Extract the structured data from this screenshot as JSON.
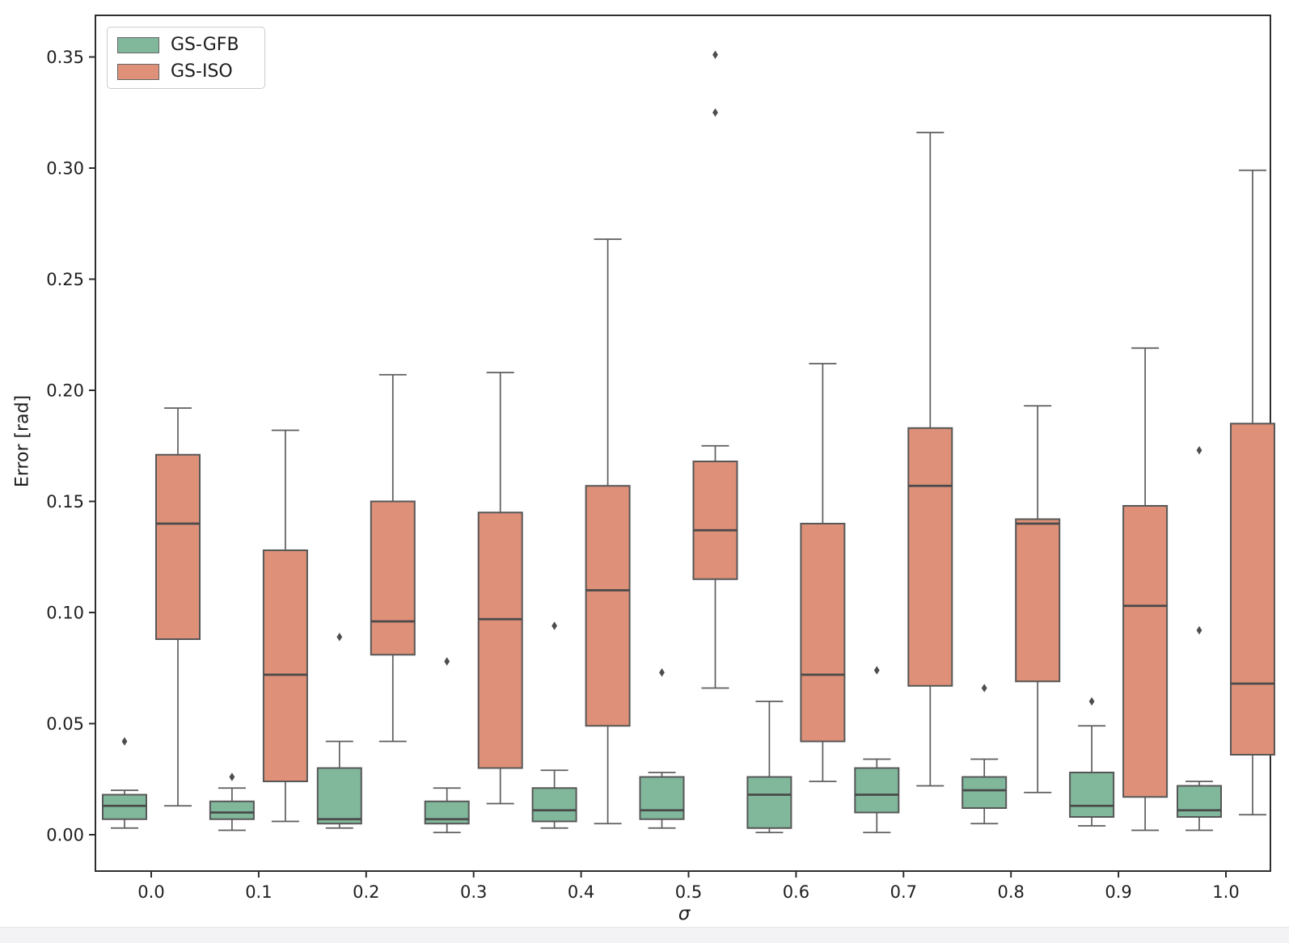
{
  "figure": {
    "background": "#ffffff",
    "footer_strip_color": "#f3f3f5"
  },
  "chart_data": {
    "type": "boxplot",
    "title": "",
    "xlabel": "σ",
    "ylabel": "Error [rad]",
    "grid": false,
    "legend_position": "upper left",
    "categories": [
      "0.0",
      "0.1",
      "0.2",
      "0.3",
      "0.4",
      "0.5",
      "0.6",
      "0.7",
      "0.8",
      "0.9",
      "1.0"
    ],
    "yticks": [
      0.0,
      0.05,
      0.1,
      0.15,
      0.2,
      0.25,
      0.3,
      0.35
    ],
    "ytick_labels": [
      "0.00",
      "0.05",
      "0.10",
      "0.15",
      "0.20",
      "0.25",
      "0.30",
      "0.35"
    ],
    "ylim": [
      -0.0164,
      0.3687
    ],
    "axis_color": "#2e2e2e",
    "whisker_color": "#5d5d5d",
    "outlier_color": "#4d4d4d",
    "series": [
      {
        "name": "GS-GFB",
        "color": "#81b89c",
        "boxes": [
          {
            "whislo": 0.003,
            "q1": 0.007,
            "med": 0.013,
            "q3": 0.018,
            "whishi": 0.02,
            "fliers": [
              0.042
            ]
          },
          {
            "whislo": 0.002,
            "q1": 0.007,
            "med": 0.01,
            "q3": 0.015,
            "whishi": 0.021,
            "fliers": [
              0.026
            ]
          },
          {
            "whislo": 0.003,
            "q1": 0.005,
            "med": 0.007,
            "q3": 0.03,
            "whishi": 0.042,
            "fliers": [
              0.089
            ]
          },
          {
            "whislo": 0.001,
            "q1": 0.005,
            "med": 0.007,
            "q3": 0.015,
            "whishi": 0.021,
            "fliers": [
              0.078
            ]
          },
          {
            "whislo": 0.003,
            "q1": 0.006,
            "med": 0.011,
            "q3": 0.021,
            "whishi": 0.029,
            "fliers": [
              0.094
            ]
          },
          {
            "whislo": 0.003,
            "q1": 0.007,
            "med": 0.011,
            "q3": 0.026,
            "whishi": 0.028,
            "fliers": [
              0.073
            ]
          },
          {
            "whislo": 0.001,
            "q1": 0.003,
            "med": 0.018,
            "q3": 0.026,
            "whishi": 0.06,
            "fliers": []
          },
          {
            "whislo": 0.001,
            "q1": 0.01,
            "med": 0.018,
            "q3": 0.03,
            "whishi": 0.034,
            "fliers": [
              0.074
            ]
          },
          {
            "whislo": 0.005,
            "q1": 0.012,
            "med": 0.02,
            "q3": 0.026,
            "whishi": 0.034,
            "fliers": [
              0.066
            ]
          },
          {
            "whislo": 0.004,
            "q1": 0.008,
            "med": 0.013,
            "q3": 0.028,
            "whishi": 0.049,
            "fliers": [
              0.06
            ]
          },
          {
            "whislo": 0.002,
            "q1": 0.008,
            "med": 0.011,
            "q3": 0.022,
            "whishi": 0.024,
            "fliers": [
              0.092,
              0.173
            ]
          }
        ]
      },
      {
        "name": "GS-ISO",
        "color": "#de9078",
        "boxes": [
          {
            "whislo": 0.013,
            "q1": 0.088,
            "med": 0.14,
            "q3": 0.171,
            "whishi": 0.192,
            "fliers": []
          },
          {
            "whislo": 0.006,
            "q1": 0.024,
            "med": 0.072,
            "q3": 0.128,
            "whishi": 0.182,
            "fliers": []
          },
          {
            "whislo": 0.042,
            "q1": 0.081,
            "med": 0.096,
            "q3": 0.15,
            "whishi": 0.207,
            "fliers": []
          },
          {
            "whislo": 0.014,
            "q1": 0.03,
            "med": 0.097,
            "q3": 0.145,
            "whishi": 0.208,
            "fliers": []
          },
          {
            "whislo": 0.005,
            "q1": 0.049,
            "med": 0.11,
            "q3": 0.157,
            "whishi": 0.268,
            "fliers": []
          },
          {
            "whislo": 0.066,
            "q1": 0.115,
            "med": 0.137,
            "q3": 0.168,
            "whishi": 0.175,
            "fliers": [
              0.325,
              0.351
            ]
          },
          {
            "whislo": 0.024,
            "q1": 0.042,
            "med": 0.072,
            "q3": 0.14,
            "whishi": 0.212,
            "fliers": []
          },
          {
            "whislo": 0.022,
            "q1": 0.067,
            "med": 0.157,
            "q3": 0.183,
            "whishi": 0.316,
            "fliers": []
          },
          {
            "whislo": 0.019,
            "q1": 0.069,
            "med": 0.14,
            "q3": 0.142,
            "whishi": 0.193,
            "fliers": []
          },
          {
            "whislo": 0.002,
            "q1": 0.017,
            "med": 0.103,
            "q3": 0.148,
            "whishi": 0.219,
            "fliers": []
          },
          {
            "whislo": 0.009,
            "q1": 0.036,
            "med": 0.068,
            "q3": 0.185,
            "whishi": 0.299,
            "fliers": []
          }
        ]
      }
    ]
  }
}
